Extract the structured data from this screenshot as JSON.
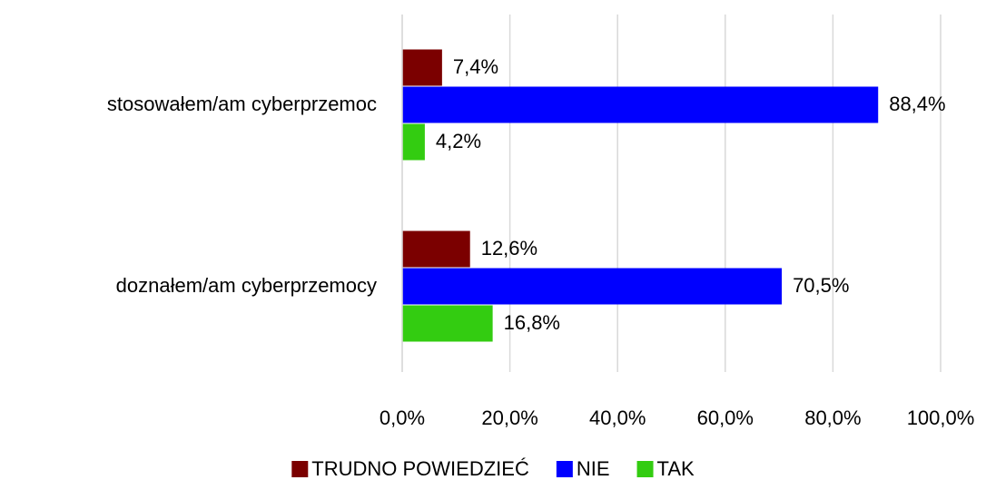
{
  "chart_data": {
    "type": "bar",
    "orientation": "horizontal",
    "categories": [
      "stosowałem/am cyberprzemoc",
      "doznałem/am cyberprzemocy"
    ],
    "series": [
      {
        "name": "TRUDNO POWIEDZIEĆ",
        "color": "#7b0000",
        "values": [
          7.4,
          12.6
        ],
        "value_labels": [
          "7,4%",
          "12,6%"
        ]
      },
      {
        "name": "NIE",
        "color": "#0000ff",
        "values": [
          88.4,
          70.5
        ],
        "value_labels": [
          "88,4%",
          "70,5%"
        ]
      },
      {
        "name": "TAK",
        "color": "#33cc11",
        "values": [
          4.2,
          16.8
        ],
        "value_labels": [
          "4,2%",
          "16,8%"
        ]
      }
    ],
    "xlim": [
      0,
      100
    ],
    "xticks": [
      {
        "value": 0,
        "label": "0,0%"
      },
      {
        "value": 20,
        "label": "20,0%"
      },
      {
        "value": 40,
        "label": "40,0%"
      },
      {
        "value": 60,
        "label": "60,0%"
      },
      {
        "value": 80,
        "label": "80,0%"
      },
      {
        "value": 100,
        "label": "100,0%"
      }
    ],
    "grid": true,
    "legend": "bottom"
  }
}
